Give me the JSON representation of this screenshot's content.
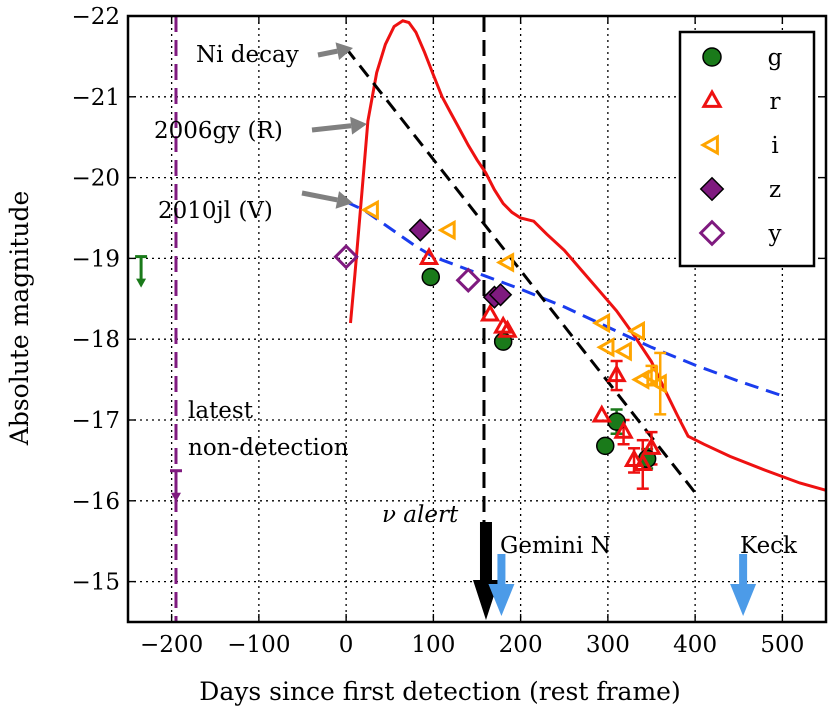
{
  "chart_data": {
    "type": "scatter",
    "xlabel": "Days since first detection (rest frame)",
    "ylabel": "Absolute magnitude",
    "xlim": [
      -250,
      550
    ],
    "ylim": [
      -14.5,
      -22
    ],
    "xticks": [
      {
        "value": -200,
        "label": "−200"
      },
      {
        "value": -100,
        "label": "−100"
      },
      {
        "value": 0,
        "label": "0"
      },
      {
        "value": 100,
        "label": "100"
      },
      {
        "value": 200,
        "label": "200"
      },
      {
        "value": 300,
        "label": "300"
      },
      {
        "value": 400,
        "label": "400"
      },
      {
        "value": 500,
        "label": "500"
      }
    ],
    "yticks": [
      {
        "value": -15,
        "label": "−15"
      },
      {
        "value": -16,
        "label": "−16"
      },
      {
        "value": -17,
        "label": "−17"
      },
      {
        "value": -18,
        "label": "−18"
      },
      {
        "value": -19,
        "label": "−19"
      },
      {
        "value": -20,
        "label": "−20"
      },
      {
        "value": -21,
        "label": "−21"
      },
      {
        "value": -22,
        "label": "−22"
      }
    ],
    "grid": true,
    "legend_position": "top-right",
    "colors": {
      "g": "#1a7a1a",
      "r": "#ee1111",
      "i": "#ffa500",
      "z": "#7f1a7f",
      "y": "#7f1a7f",
      "sn2006gy": "#ee1111",
      "sn2010jl": "#1a3cee",
      "ni": "#000000",
      "vline_nondet": "#7f1a7f",
      "neutrino": "#000000",
      "obs_arrow": "#4c9be8",
      "annot_arrow": "#808080"
    },
    "series": [
      {
        "name": "g",
        "marker": "circle",
        "filled": true,
        "points": [
          {
            "x": 97,
            "y": -18.77
          },
          {
            "x": 180,
            "y": -17.97
          },
          {
            "x": 297,
            "y": -16.68
          },
          {
            "x": 310,
            "y": -16.98,
            "err": 0.15
          },
          {
            "x": 345,
            "y": -16.52,
            "err": 0.12
          }
        ]
      },
      {
        "name": "r",
        "marker": "triangle-up",
        "filled": false,
        "points": [
          {
            "x": 95,
            "y": -19.0
          },
          {
            "x": 165,
            "y": -18.3
          },
          {
            "x": 180,
            "y": -18.15
          },
          {
            "x": 185,
            "y": -18.1
          },
          {
            "x": 293,
            "y": -17.05
          },
          {
            "x": 310,
            "y": -17.55,
            "err": 0.18
          },
          {
            "x": 318,
            "y": -16.85,
            "err": 0.15
          },
          {
            "x": 330,
            "y": -16.5,
            "err": 0.15
          },
          {
            "x": 340,
            "y": -16.45,
            "err": 0.3
          },
          {
            "x": 350,
            "y": -16.65,
            "err": 0.2
          }
        ]
      },
      {
        "name": "i",
        "marker": "triangle-left",
        "filled": false,
        "points": [
          {
            "x": 30,
            "y": -19.6
          },
          {
            "x": 118,
            "y": -19.35
          },
          {
            "x": 185,
            "y": -18.95
          },
          {
            "x": 295,
            "y": -18.2
          },
          {
            "x": 300,
            "y": -17.9
          },
          {
            "x": 320,
            "y": -17.85
          },
          {
            "x": 335,
            "y": -18.1
          },
          {
            "x": 340,
            "y": -17.5
          },
          {
            "x": 350,
            "y": -17.55,
            "err": 0.12
          },
          {
            "x": 360,
            "y": -17.45,
            "err": 0.38
          }
        ]
      },
      {
        "name": "z",
        "marker": "diamond",
        "filled": true,
        "points": [
          {
            "x": 85,
            "y": -19.35
          },
          {
            "x": 170,
            "y": -18.52
          },
          {
            "x": 177,
            "y": -18.55
          }
        ]
      },
      {
        "name": "y",
        "marker": "diamond",
        "filled": false,
        "points": [
          {
            "x": 0,
            "y": -19.02
          },
          {
            "x": 140,
            "y": -18.73
          }
        ]
      }
    ],
    "model_curves": [
      {
        "name": "2006gy (R)",
        "style": "solid",
        "points": [
          [
            5,
            -18.2
          ],
          [
            10,
            -18.8
          ],
          [
            18,
            -19.8
          ],
          [
            25,
            -20.7
          ],
          [
            35,
            -21.3
          ],
          [
            45,
            -21.65
          ],
          [
            55,
            -21.87
          ],
          [
            65,
            -21.94
          ],
          [
            72,
            -21.92
          ],
          [
            80,
            -21.8
          ],
          [
            90,
            -21.55
          ],
          [
            100,
            -21.27
          ],
          [
            110,
            -21.0
          ],
          [
            120,
            -20.8
          ],
          [
            130,
            -20.6
          ],
          [
            140,
            -20.4
          ],
          [
            150,
            -20.22
          ],
          [
            160,
            -20.06
          ],
          [
            170,
            -19.85
          ],
          [
            180,
            -19.68
          ],
          [
            190,
            -19.57
          ],
          [
            200,
            -19.5
          ],
          [
            215,
            -19.46
          ],
          [
            230,
            -19.3
          ],
          [
            250,
            -19.1
          ],
          [
            270,
            -18.85
          ],
          [
            290,
            -18.6
          ],
          [
            310,
            -18.35
          ],
          [
            330,
            -18.05
          ],
          [
            350,
            -17.72
          ],
          [
            365,
            -17.38
          ],
          [
            380,
            -17.05
          ],
          [
            392,
            -16.8
          ],
          [
            410,
            -16.7
          ],
          [
            440,
            -16.55
          ],
          [
            480,
            -16.38
          ],
          [
            520,
            -16.22
          ],
          [
            550,
            -16.13
          ]
        ]
      },
      {
        "name": "2010jl (V)",
        "style": "dashed",
        "points": [
          [
            0,
            -19.7
          ],
          [
            20,
            -19.6
          ],
          [
            40,
            -19.45
          ],
          [
            60,
            -19.3
          ],
          [
            80,
            -19.15
          ],
          [
            100,
            -19.02
          ],
          [
            130,
            -18.9
          ],
          [
            160,
            -18.78
          ],
          [
            200,
            -18.62
          ],
          [
            250,
            -18.4
          ],
          [
            300,
            -18.15
          ],
          [
            350,
            -17.9
          ],
          [
            400,
            -17.68
          ],
          [
            450,
            -17.48
          ],
          [
            500,
            -17.3
          ]
        ]
      },
      {
        "name": "Ni decay",
        "style": "dashed",
        "points": [
          [
            0,
            -21.6
          ],
          [
            400,
            -16.1
          ]
        ]
      }
    ],
    "upper_limits": [
      {
        "x": -235,
        "y": -18.75,
        "series": "g"
      },
      {
        "x": -195,
        "y": -16.1,
        "series": "z"
      }
    ],
    "vertical_lines": [
      {
        "x": -195,
        "label": "latest non-detection",
        "style": "dashed"
      },
      {
        "x": 158,
        "label": "ν alert",
        "style": "dashed"
      }
    ],
    "observation_markers": [
      {
        "x": 158,
        "label": "ν alert"
      },
      {
        "x": 178,
        "label": "Gemini N"
      },
      {
        "x": 455,
        "label": "Keck"
      }
    ],
    "annotations": [
      {
        "text": "Ni decay",
        "target": "Ni decay curve"
      },
      {
        "text": "2006gy (R)",
        "target": "2006gy (R) curve"
      },
      {
        "text": "2010jl (V)",
        "target": "2010jl (V) curve"
      },
      {
        "text": "latest",
        "target": "latest non-detection line"
      },
      {
        "text": "non-detection",
        "target": "latest non-detection line"
      }
    ],
    "legend": [
      {
        "label": "g",
        "series": "g"
      },
      {
        "label": "r",
        "series": "r"
      },
      {
        "label": "i",
        "series": "i"
      },
      {
        "label": "z",
        "series": "z"
      },
      {
        "label": "y",
        "series": "y"
      }
    ]
  }
}
